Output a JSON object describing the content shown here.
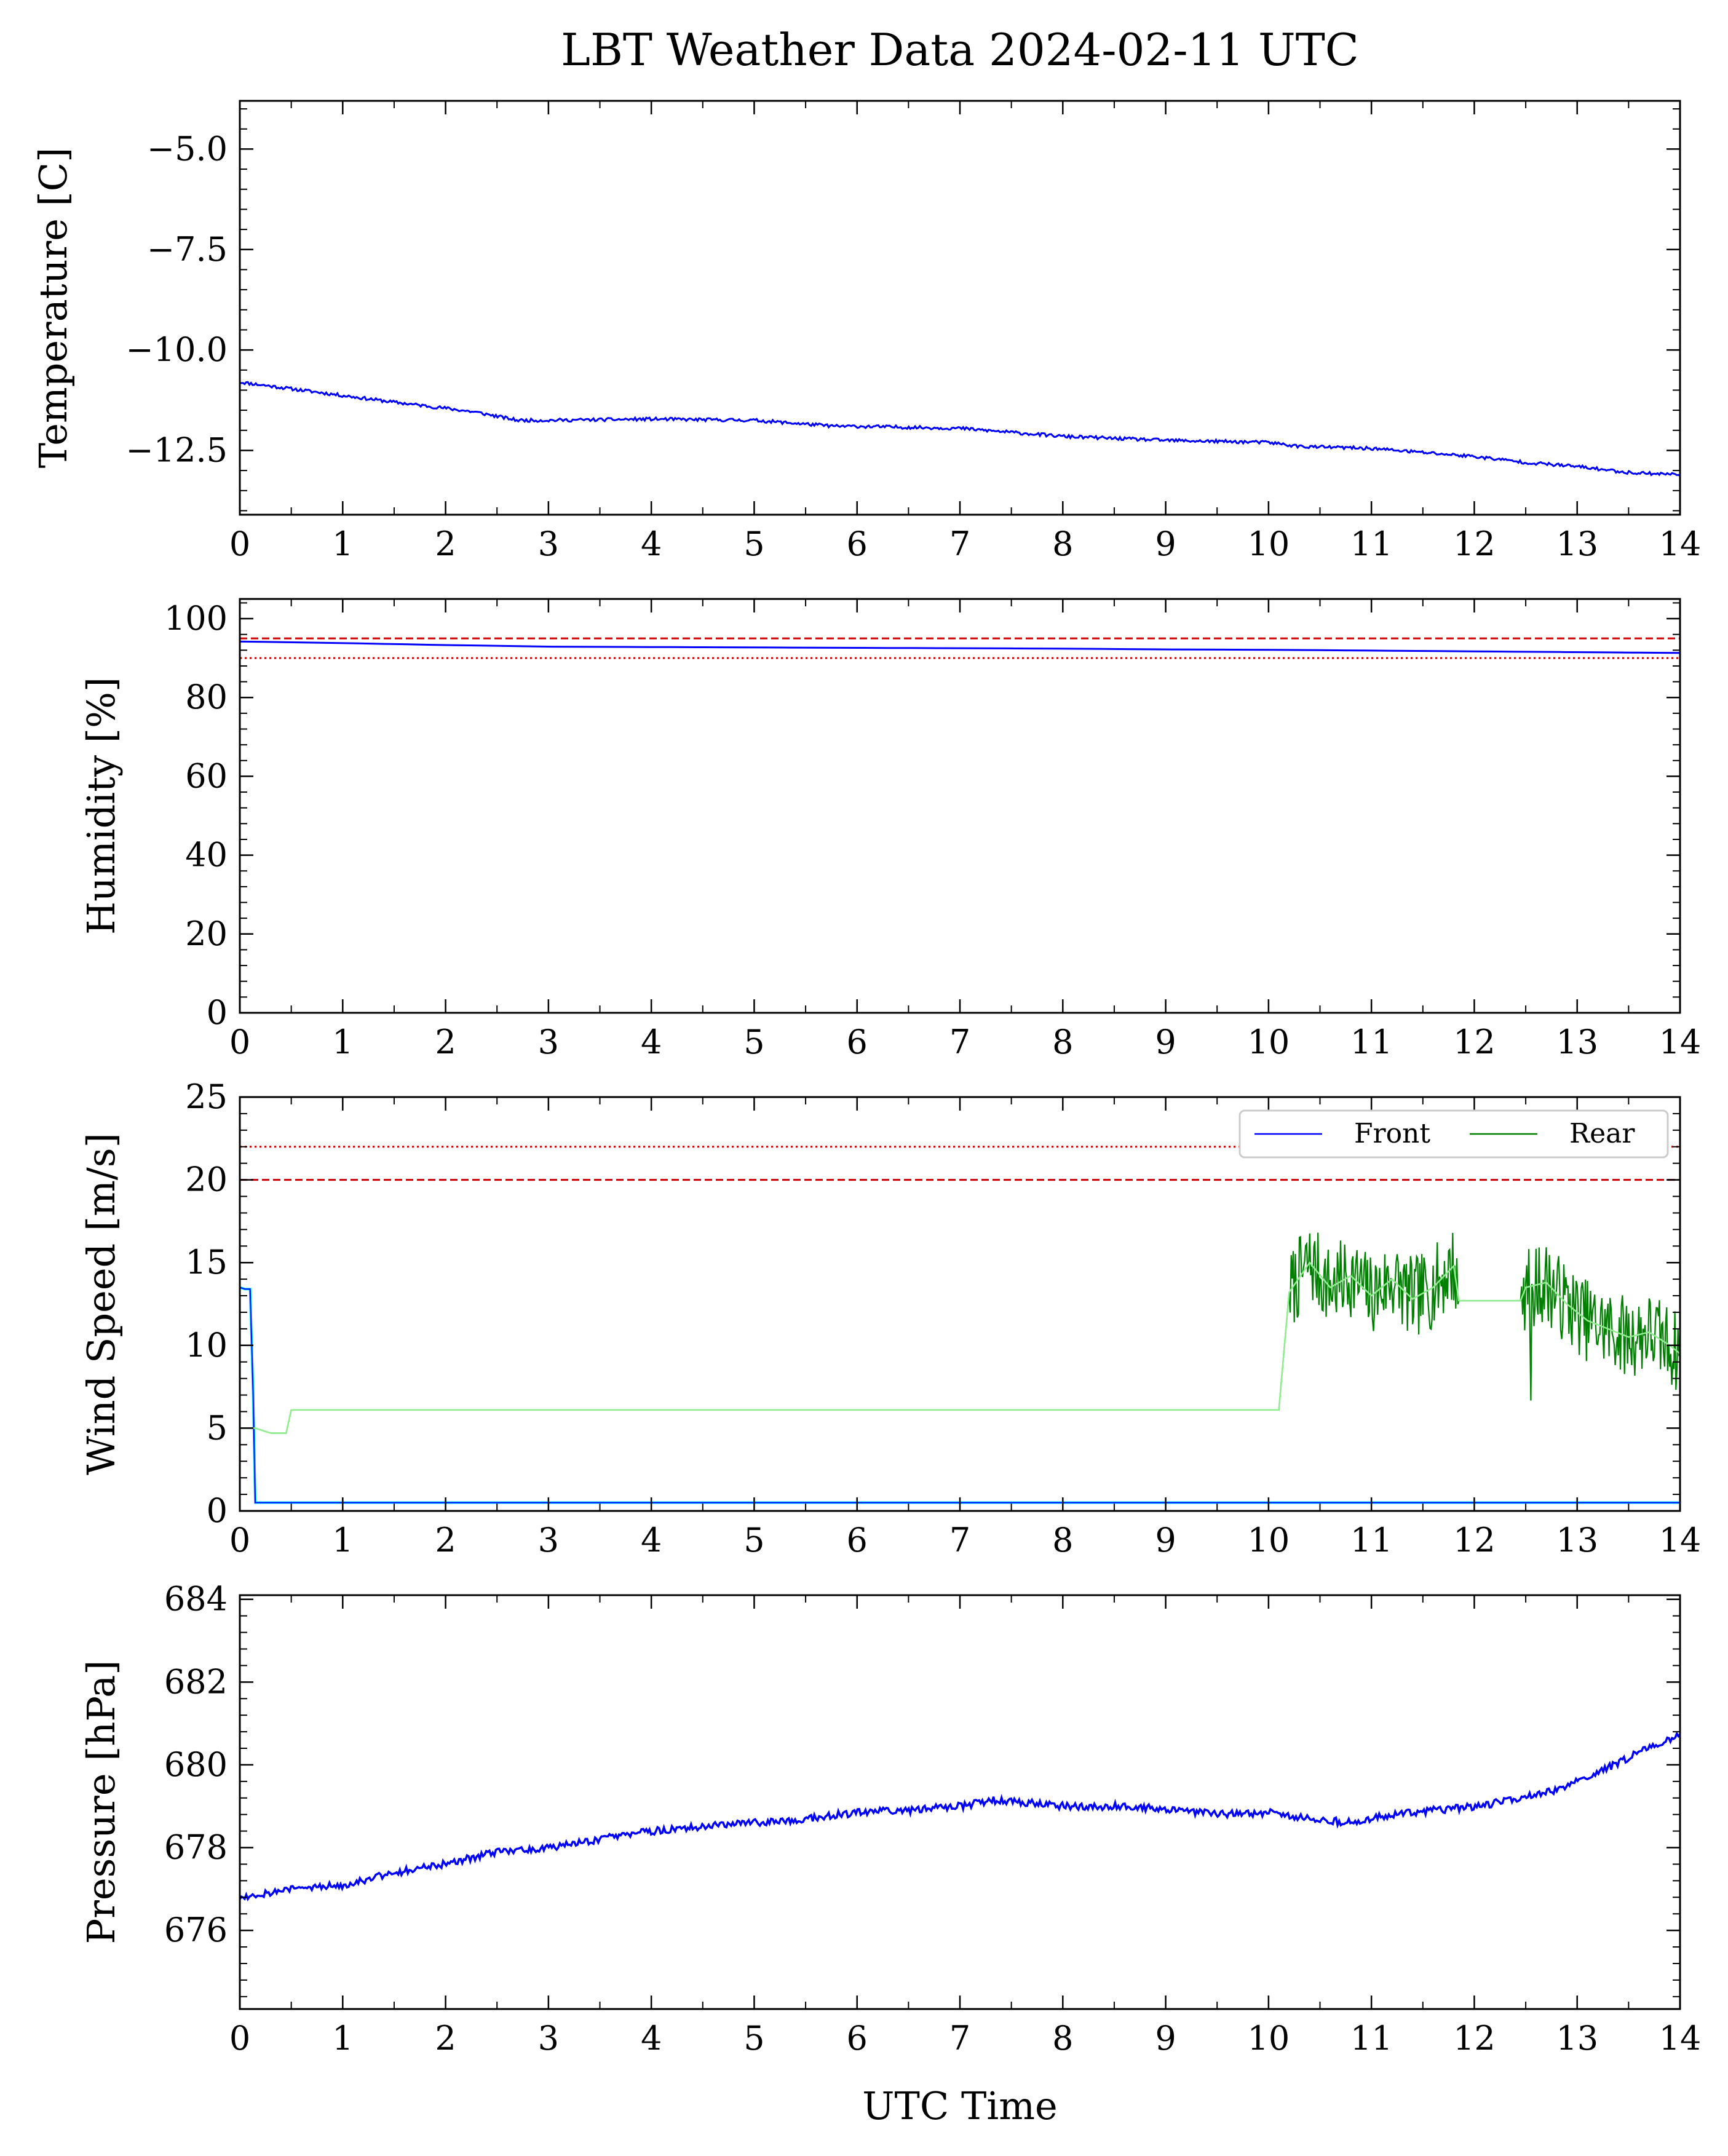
{
  "figure": {
    "title": "LBT Weather Data 2024-02-11 UTC",
    "xlabel": "UTC Time"
  },
  "colors": {
    "temperature": "#0000ff",
    "humidity": "#0000ff",
    "front": "#0000ff",
    "front_smoothed": "#00e5ff",
    "rear": "#008000",
    "rear_smoothed": "#90ee90",
    "pressure": "#0000ff",
    "threshold": "#cc0000"
  },
  "chart_data": [
    {
      "type": "line",
      "ylabel": "Temperature [C]",
      "xlim": [
        0,
        14
      ],
      "ylim": [
        -14.1,
        -3.8
      ],
      "xticks": [
        0,
        1,
        2,
        3,
        4,
        5,
        6,
        7,
        8,
        9,
        10,
        11,
        12,
        13,
        14
      ],
      "yticks": [
        -5.0,
        -7.5,
        -10.0,
        -12.5
      ],
      "ytick_labels": [
        "−5.0",
        "−7.5",
        "−10.0",
        "−12.5"
      ],
      "series": [
        {
          "x": [
            0.0,
            0.3,
            0.6,
            0.9,
            1.2,
            1.5,
            2.0,
            2.3,
            2.7,
            3.0,
            4.0,
            5.0,
            5.8,
            6.0,
            7.0,
            7.5,
            8.0,
            8.5,
            9.0,
            10.0,
            10.3,
            11.0,
            11.5,
            12.0,
            12.5,
            13.0,
            13.5,
            14.0
          ],
          "y": [
            -10.8,
            -10.9,
            -11.0,
            -11.1,
            -11.2,
            -11.3,
            -11.45,
            -11.55,
            -11.75,
            -11.75,
            -11.72,
            -11.75,
            -11.9,
            -11.9,
            -11.95,
            -12.05,
            -12.15,
            -12.2,
            -12.25,
            -12.3,
            -12.4,
            -12.45,
            -12.55,
            -12.65,
            -12.8,
            -12.9,
            -13.05,
            -13.1
          ]
        }
      ]
    },
    {
      "type": "line",
      "ylabel": "Humidity [%]",
      "xlim": [
        0,
        14
      ],
      "ylim": [
        0,
        105
      ],
      "xticks": [
        0,
        1,
        2,
        3,
        4,
        5,
        6,
        7,
        8,
        9,
        10,
        11,
        12,
        13,
        14
      ],
      "yticks": [
        0,
        20,
        40,
        60,
        80,
        100
      ],
      "thresholds": [
        {
          "y": 95,
          "style": "dashed"
        },
        {
          "y": 90,
          "style": "dotted"
        }
      ],
      "series": [
        {
          "x": [
            0,
            1,
            2,
            3,
            4,
            5,
            6,
            7,
            8,
            9,
            10,
            11,
            12,
            13,
            14
          ],
          "y": [
            94.2,
            93.8,
            93.3,
            92.9,
            92.8,
            92.7,
            92.6,
            92.5,
            92.4,
            92.2,
            92.1,
            91.9,
            91.7,
            91.5,
            91.3
          ]
        }
      ]
    },
    {
      "type": "line",
      "ylabel": "Wind Speed [m/s]",
      "xlim": [
        0,
        14
      ],
      "ylim": [
        0,
        25
      ],
      "xticks": [
        0,
        1,
        2,
        3,
        4,
        5,
        6,
        7,
        8,
        9,
        10,
        11,
        12,
        13,
        14
      ],
      "yticks": [
        0,
        5,
        10,
        15,
        20,
        25
      ],
      "thresholds": [
        {
          "y": 20,
          "style": "dashed"
        },
        {
          "y": 22,
          "style": "dotted"
        }
      ],
      "legend": {
        "placement": "top-right",
        "columns": 2
      },
      "series": [
        {
          "name": "Front",
          "x": [
            0.0,
            0.05,
            0.1,
            0.13,
            0.15,
            0.2,
            14.0
          ],
          "y": [
            13.5,
            13.4,
            13.4,
            7.0,
            0.5,
            0.5,
            0.5
          ]
        },
        {
          "name": "Rear",
          "x": [
            0.0,
            0.15,
            0.25,
            0.3,
            0.45,
            0.5,
            10.1,
            10.2,
            10.4,
            10.6,
            10.8,
            11.0,
            11.2,
            11.4,
            11.6,
            11.8,
            11.85,
            12.45,
            12.5,
            12.7,
            12.9,
            13.1,
            13.3,
            13.5,
            13.7,
            13.9,
            14.0
          ],
          "y": [
            5.0,
            5.0,
            4.8,
            4.7,
            4.7,
            6.1,
            6.1,
            13.2,
            15.0,
            13.5,
            14.2,
            13.0,
            14.0,
            12.8,
            13.5,
            14.8,
            12.7,
            12.7,
            13.5,
            13.8,
            12.5,
            11.5,
            11.0,
            10.5,
            10.8,
            10.0,
            9.5
          ]
        }
      ]
    },
    {
      "type": "line",
      "ylabel": "Pressure [hPa]",
      "xlim": [
        0,
        14
      ],
      "ylim": [
        674.1,
        684.1
      ],
      "xticks": [
        0,
        1,
        2,
        3,
        4,
        5,
        6,
        7,
        8,
        9,
        10,
        11,
        12,
        13,
        14
      ],
      "yticks": [
        676,
        678,
        680,
        682,
        684
      ],
      "series": [
        {
          "x": [
            0.0,
            0.5,
            1.0,
            1.5,
            2.0,
            2.5,
            3.0,
            3.5,
            4.0,
            4.5,
            5.0,
            5.5,
            6.0,
            6.5,
            7.0,
            7.3,
            7.6,
            8.0,
            8.5,
            9.0,
            9.5,
            10.0,
            10.4,
            10.8,
            11.2,
            11.6,
            12.0,
            12.4,
            12.8,
            13.2,
            13.6,
            14.0
          ],
          "y": [
            676.8,
            677.0,
            677.1,
            677.4,
            677.6,
            677.9,
            678.0,
            678.2,
            678.4,
            678.5,
            678.6,
            678.7,
            678.85,
            678.9,
            679.0,
            679.15,
            679.1,
            679.0,
            679.0,
            678.95,
            678.8,
            678.85,
            678.7,
            678.6,
            678.8,
            678.9,
            679.0,
            679.15,
            679.4,
            679.8,
            680.3,
            680.7
          ]
        }
      ]
    }
  ]
}
